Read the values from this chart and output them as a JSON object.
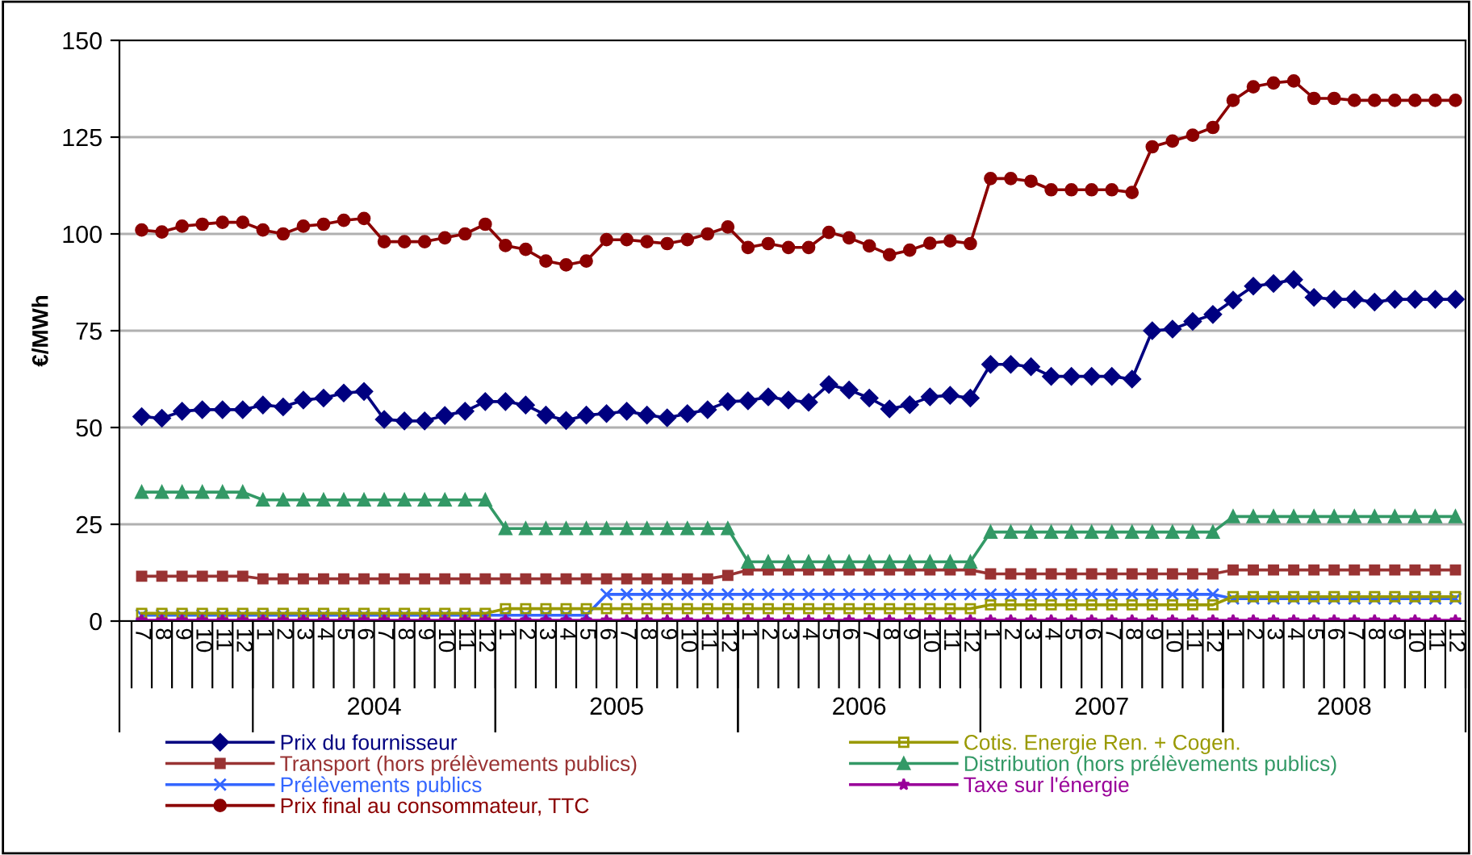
{
  "chart_data": {
    "type": "line",
    "ylabel": "€/MWh",
    "ylim": [
      0,
      150
    ],
    "yticks": [
      0,
      25,
      50,
      75,
      100,
      125,
      150
    ],
    "grid": "y",
    "legend": "bottom",
    "categories": [
      "7",
      "8",
      "9",
      "10",
      "11",
      "12",
      "1",
      "2",
      "3",
      "4",
      "5",
      "6",
      "7",
      "8",
      "9",
      "10",
      "11",
      "12",
      "1",
      "2",
      "3",
      "4",
      "5",
      "6",
      "7",
      "8",
      "9",
      "10",
      "11",
      "12",
      "1",
      "2",
      "3",
      "4",
      "5",
      "6",
      "7",
      "8",
      "9",
      "10",
      "11",
      "12",
      "1",
      "2",
      "3",
      "4",
      "5",
      "6",
      "7",
      "8",
      "9",
      "10",
      "11",
      "12",
      "1",
      "2",
      "3",
      "4",
      "5",
      "6",
      "7",
      "8",
      "9",
      "10",
      "11",
      "12"
    ],
    "annotations": [
      "2004",
      "2005",
      "2006",
      "2007",
      "2008"
    ],
    "series": [
      {
        "name": "Prix du fournisseur",
        "color": "#000080",
        "marker": "diamond",
        "values": [
          52.8,
          52.4,
          54.2,
          54.6,
          54.6,
          54.6,
          55.8,
          55.3,
          57.1,
          57.6,
          58.9,
          59.3,
          52.1,
          51.7,
          51.7,
          53.1,
          54.2,
          56.7,
          56.7,
          55.8,
          53.2,
          51.8,
          53.2,
          53.6,
          54.2,
          53.2,
          52.5,
          53.6,
          54.6,
          56.7,
          56.9,
          57.9,
          57.1,
          56.5,
          61.1,
          59.7,
          57.6,
          54.8,
          55.9,
          57.9,
          58.3,
          57.6,
          66.3,
          66.3,
          65.7,
          63.2,
          63.2,
          63.2,
          63.2,
          62.5,
          75,
          75.4,
          77.4,
          79.2,
          82.9,
          86.5,
          87.2,
          88.2,
          83.6,
          83.1,
          83.1,
          82.4,
          83.1,
          83.1,
          83.1,
          83.1
        ]
      },
      {
        "name": "Transport (hors prélèvements publics)",
        "color": "#993333",
        "marker": "square",
        "values": [
          11.6,
          11.6,
          11.6,
          11.6,
          11.6,
          11.6,
          10.9,
          10.9,
          10.9,
          10.9,
          10.9,
          10.9,
          10.9,
          10.9,
          10.9,
          10.9,
          10.9,
          10.9,
          10.9,
          10.9,
          10.9,
          10.9,
          10.9,
          10.9,
          10.9,
          10.9,
          10.9,
          10.9,
          10.9,
          11.8,
          13.2,
          13.2,
          13.2,
          13.2,
          13.2,
          13.2,
          13.2,
          13.2,
          13.2,
          13.2,
          13.2,
          13.2,
          12.2,
          12.2,
          12.2,
          12.2,
          12.2,
          12.2,
          12.2,
          12.2,
          12.2,
          12.2,
          12.2,
          12.2,
          13.2,
          13.2,
          13.2,
          13.2,
          13.2,
          13.2,
          13.2,
          13.2,
          13.2,
          13.2,
          13.2,
          13.2
        ]
      },
      {
        "name": "Prélèvements publics",
        "color": "#3366ff",
        "marker": "cross",
        "values": [
          1.5,
          1.5,
          1.5,
          1.5,
          1.5,
          1.5,
          1.5,
          1.5,
          1.5,
          1.5,
          1.5,
          1.5,
          1.5,
          1.5,
          1.5,
          1.5,
          1.5,
          1.5,
          1.5,
          1.5,
          1.5,
          1.5,
          1.5,
          6.9,
          6.9,
          6.9,
          6.9,
          6.9,
          6.9,
          6.9,
          6.9,
          6.9,
          6.9,
          6.9,
          6.9,
          6.9,
          6.9,
          6.9,
          6.9,
          6.9,
          6.9,
          6.9,
          6.9,
          6.9,
          6.9,
          6.9,
          6.9,
          6.9,
          6.9,
          6.9,
          6.9,
          6.9,
          6.9,
          6.9,
          5.8,
          5.8,
          5.8,
          5.8,
          5.8,
          5.8,
          5.8,
          5.8,
          5.8,
          5.8,
          5.8,
          5.8
        ]
      },
      {
        "name": "Prix final au consommateur, TTC",
        "color": "#8b0000",
        "marker": "circle",
        "values": [
          101,
          100.5,
          102,
          102.5,
          103,
          103,
          101,
          100,
          102,
          102.5,
          103.5,
          104,
          98,
          98,
          98,
          99,
          100,
          102.5,
          97,
          96,
          93,
          92,
          93,
          98.5,
          98.5,
          98,
          97.5,
          98.5,
          100,
          101.8,
          96.5,
          97.5,
          96.5,
          96.5,
          100.4,
          99,
          96.9,
          94.6,
          95.8,
          97.6,
          98.2,
          97.5,
          114.3,
          114.3,
          113.6,
          111.4,
          111.4,
          111.4,
          111.4,
          110.7,
          122.5,
          124,
          125.5,
          127.5,
          134.5,
          138,
          139,
          139.5,
          135,
          135,
          134.5,
          134.5,
          134.5,
          134.5,
          134.5,
          134.5
        ]
      },
      {
        "name": "Cotis. Energie Ren. + Cogen.",
        "color": "#999900",
        "marker": "square",
        "values": [
          2,
          2,
          2,
          2,
          2,
          2,
          2,
          2,
          2,
          2,
          2,
          2,
          2,
          2,
          2,
          2,
          2,
          2,
          3.2,
          3.2,
          3.2,
          3.2,
          3.2,
          3.2,
          3.2,
          3.2,
          3.2,
          3.2,
          3.2,
          3.2,
          3.2,
          3.2,
          3.2,
          3.2,
          3.2,
          3.2,
          3.2,
          3.2,
          3.2,
          3.2,
          3.2,
          3.2,
          4.2,
          4.2,
          4.2,
          4.2,
          4.2,
          4.2,
          4.2,
          4.2,
          4.2,
          4.2,
          4.2,
          4.2,
          6.3,
          6.3,
          6.3,
          6.3,
          6.3,
          6.3,
          6.3,
          6.3,
          6.3,
          6.3,
          6.3,
          6.3
        ]
      },
      {
        "name": "Distribution (hors prélèvements publics)",
        "color": "#339966",
        "marker": "triangle",
        "values": [
          33.3,
          33.3,
          33.3,
          33.3,
          33.3,
          33.3,
          31.3,
          31.3,
          31.3,
          31.3,
          31.3,
          31.3,
          31.3,
          31.3,
          31.3,
          31.3,
          31.3,
          31.3,
          23.9,
          23.9,
          23.9,
          23.9,
          23.9,
          23.9,
          23.9,
          23.9,
          23.9,
          23.9,
          23.9,
          23.9,
          15.3,
          15.3,
          15.3,
          15.3,
          15.3,
          15.3,
          15.3,
          15.3,
          15.3,
          15.3,
          15.3,
          15.3,
          23,
          23,
          23,
          23,
          23,
          23,
          23,
          23,
          23,
          23,
          23,
          23,
          27,
          27,
          27,
          27,
          27,
          27,
          27,
          27,
          27,
          27,
          27,
          27
        ]
      },
      {
        "name": "Taxe sur l'énergie",
        "color": "#990099",
        "marker": "star",
        "values": [
          0.2,
          0.2,
          0.2,
          0.2,
          0.2,
          0.2,
          0.2,
          0.2,
          0.2,
          0.2,
          0.2,
          0.2,
          0.2,
          0.2,
          0.2,
          0.2,
          0.2,
          0.2,
          0.2,
          0.2,
          0.2,
          0.2,
          0.2,
          0.2,
          0.2,
          0.2,
          0.2,
          0.2,
          0.2,
          0.2,
          0.2,
          0.2,
          0.2,
          0.2,
          0.2,
          0.2,
          0.2,
          0.2,
          0.2,
          0.2,
          0.2,
          0.2,
          0.2,
          0.2,
          0.2,
          0.2,
          0.2,
          0.2,
          0.2,
          0.2,
          0.2,
          0.2,
          0.2,
          0.2,
          0.2,
          0.2,
          0.2,
          0.2,
          0.2,
          0.2,
          0.2,
          0.2,
          0.2,
          0.2,
          0.2,
          0.2
        ]
      }
    ]
  }
}
